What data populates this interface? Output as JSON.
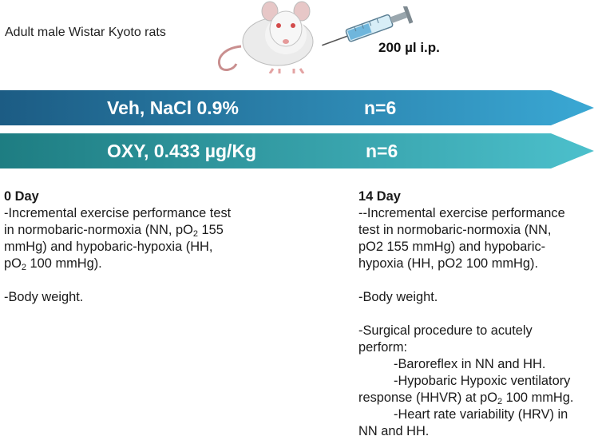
{
  "header": {
    "subject": "Adult male Wistar Kyoto rats",
    "dose": "200 µl i.p."
  },
  "colors": {
    "arrow1_start": "#1c5c84",
    "arrow1_end": "#3aa8d4",
    "arrow2_start": "#1e7d82",
    "arrow2_end": "#4cc0cc"
  },
  "icons": [
    "rat-illustration",
    "syringe-icon"
  ],
  "groups": [
    {
      "label": "Veh, NaCl 0.9%",
      "n": "n=6"
    },
    {
      "label": "OXY, 0.433 µg/Kg",
      "n": "n=6"
    }
  ],
  "day0": {
    "title": "0 Day",
    "l1": "-Incremental exercise performance test",
    "l2a": "in normobaric-normoxia (NN, pO",
    "l2b": " 155",
    "l3": "mmHg) and hypobaric-hypoxia (HH,",
    "l4a": "pO",
    "l4b": " 100 mmHg).",
    "body_weight": "-Body weight."
  },
  "day14": {
    "title": "14 Day",
    "l1": "--Incremental exercise performance",
    "l2": "test in normobaric-normoxia (NN,",
    "l3": "pO2 155 mmHg) and hypobaric-",
    "l4": "hypoxia (HH, pO2 100 mmHg).",
    "body_weight": "-Body weight.",
    "s1": "-Surgical procedure to acutely",
    "s2": "perform:",
    "s3": "-Baroreflex in NN and HH.",
    "s4": "-Hypobaric Hypoxic ventilatory",
    "s5a": "response (HHVR) at pO",
    "s5b": " 100 mmHg.",
    "s6": "-Heart rate variability (HRV) in",
    "s7": "NN and HH."
  },
  "sub2": "2"
}
